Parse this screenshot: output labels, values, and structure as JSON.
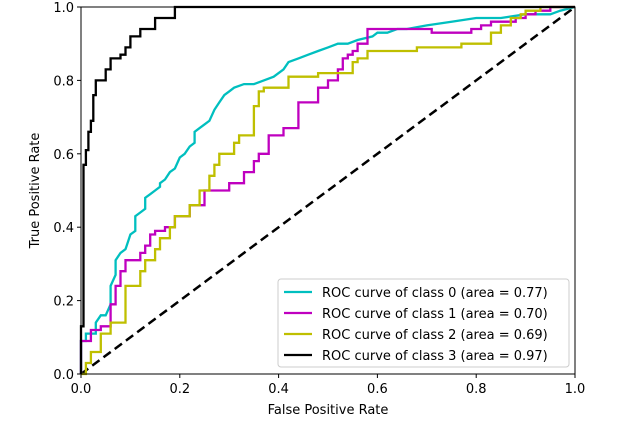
{
  "chart_data": {
    "type": "line",
    "title": "",
    "xlabel": "False Positive Rate",
    "ylabel": "True Positive Rate",
    "xlim": [
      0.0,
      1.0
    ],
    "ylim": [
      0.0,
      1.0
    ],
    "xticks": [
      "0.0",
      "0.2",
      "0.4",
      "0.6",
      "0.8",
      "1.0"
    ],
    "yticks": [
      "0.0",
      "0.2",
      "0.4",
      "0.6",
      "0.8",
      "1.0"
    ],
    "grid": false,
    "legend_position": "lower-right",
    "diagonal": {
      "color": "#000000",
      "style": "dashed",
      "x": [
        0,
        1
      ],
      "y": [
        0,
        1
      ]
    },
    "series": [
      {
        "name": "ROC curve of class 0 (area = 0.77)",
        "color": "#00bfbf",
        "x": [
          0.0,
          0.0,
          0.01,
          0.01,
          0.03,
          0.03,
          0.04,
          0.05,
          0.06,
          0.06,
          0.07,
          0.07,
          0.08,
          0.09,
          0.1,
          0.11,
          0.11,
          0.12,
          0.13,
          0.13,
          0.14,
          0.15,
          0.16,
          0.16,
          0.17,
          0.18,
          0.19,
          0.2,
          0.21,
          0.22,
          0.23,
          0.23,
          0.24,
          0.25,
          0.26,
          0.27,
          0.28,
          0.29,
          0.3,
          0.31,
          0.33,
          0.35,
          0.37,
          0.39,
          0.41,
          0.42,
          0.44,
          0.46,
          0.48,
          0.5,
          0.52,
          0.54,
          0.56,
          0.59,
          0.6,
          0.62,
          0.64,
          0.66,
          0.7,
          0.75,
          0.8,
          0.85,
          0.9,
          0.95,
          0.97,
          1.0
        ],
        "y": [
          0.0,
          0.09,
          0.09,
          0.11,
          0.11,
          0.14,
          0.16,
          0.16,
          0.19,
          0.24,
          0.27,
          0.31,
          0.33,
          0.34,
          0.38,
          0.39,
          0.43,
          0.44,
          0.45,
          0.48,
          0.49,
          0.5,
          0.51,
          0.52,
          0.53,
          0.55,
          0.56,
          0.59,
          0.6,
          0.62,
          0.63,
          0.66,
          0.67,
          0.68,
          0.69,
          0.72,
          0.74,
          0.76,
          0.77,
          0.78,
          0.79,
          0.79,
          0.8,
          0.81,
          0.83,
          0.85,
          0.86,
          0.87,
          0.88,
          0.89,
          0.9,
          0.9,
          0.91,
          0.92,
          0.93,
          0.93,
          0.94,
          0.94,
          0.95,
          0.96,
          0.97,
          0.97,
          0.98,
          0.98,
          0.99,
          1.0
        ]
      },
      {
        "name": "ROC curve of class 1 (area = 0.70)",
        "color": "#bf00bf",
        "x": [
          0.0,
          0.0,
          0.02,
          0.02,
          0.04,
          0.04,
          0.06,
          0.06,
          0.07,
          0.07,
          0.08,
          0.08,
          0.09,
          0.09,
          0.12,
          0.12,
          0.13,
          0.13,
          0.14,
          0.14,
          0.15,
          0.15,
          0.17,
          0.17,
          0.19,
          0.19,
          0.22,
          0.22,
          0.25,
          0.25,
          0.3,
          0.3,
          0.33,
          0.33,
          0.35,
          0.35,
          0.36,
          0.36,
          0.38,
          0.38,
          0.41,
          0.41,
          0.44,
          0.44,
          0.48,
          0.48,
          0.5,
          0.5,
          0.52,
          0.52,
          0.53,
          0.53,
          0.54,
          0.54,
          0.55,
          0.55,
          0.56,
          0.56,
          0.58,
          0.58,
          0.64,
          0.64,
          0.71,
          0.71,
          0.79,
          0.79,
          0.81,
          0.81,
          0.83,
          0.83,
          0.88,
          0.88,
          0.9,
          0.9,
          0.92,
          0.92,
          0.95,
          0.95,
          1.0
        ],
        "y": [
          0.0,
          0.09,
          0.09,
          0.12,
          0.12,
          0.13,
          0.13,
          0.19,
          0.19,
          0.24,
          0.24,
          0.28,
          0.28,
          0.31,
          0.31,
          0.33,
          0.33,
          0.35,
          0.35,
          0.38,
          0.38,
          0.39,
          0.39,
          0.4,
          0.4,
          0.43,
          0.43,
          0.46,
          0.46,
          0.5,
          0.5,
          0.52,
          0.52,
          0.55,
          0.55,
          0.58,
          0.58,
          0.6,
          0.6,
          0.65,
          0.65,
          0.67,
          0.67,
          0.74,
          0.74,
          0.78,
          0.78,
          0.8,
          0.8,
          0.83,
          0.83,
          0.86,
          0.86,
          0.87,
          0.87,
          0.88,
          0.88,
          0.9,
          0.9,
          0.94,
          0.94,
          0.94,
          0.94,
          0.93,
          0.93,
          0.94,
          0.94,
          0.95,
          0.95,
          0.96,
          0.96,
          0.97,
          0.97,
          0.98,
          0.98,
          0.99,
          0.99,
          1.0,
          1.0
        ]
      },
      {
        "name": "ROC curve of class 2 (area = 0.69)",
        "color": "#bfbf00",
        "x": [
          0.0,
          0.01,
          0.01,
          0.02,
          0.02,
          0.04,
          0.04,
          0.06,
          0.06,
          0.09,
          0.09,
          0.12,
          0.12,
          0.13,
          0.13,
          0.15,
          0.15,
          0.16,
          0.16,
          0.18,
          0.18,
          0.19,
          0.19,
          0.22,
          0.22,
          0.24,
          0.24,
          0.26,
          0.26,
          0.27,
          0.27,
          0.28,
          0.28,
          0.31,
          0.31,
          0.32,
          0.32,
          0.35,
          0.35,
          0.36,
          0.36,
          0.37,
          0.37,
          0.38,
          0.38,
          0.42,
          0.42,
          0.48,
          0.48,
          0.55,
          0.55,
          0.56,
          0.56,
          0.58,
          0.58,
          0.68,
          0.68,
          0.77,
          0.77,
          0.83,
          0.83,
          0.85,
          0.85,
          0.87,
          0.87,
          0.89,
          0.89,
          0.9,
          0.9,
          0.93,
          0.93,
          1.0
        ],
        "y": [
          0.0,
          0.0,
          0.03,
          0.03,
          0.06,
          0.06,
          0.11,
          0.11,
          0.14,
          0.14,
          0.24,
          0.24,
          0.28,
          0.28,
          0.31,
          0.31,
          0.34,
          0.34,
          0.37,
          0.37,
          0.4,
          0.4,
          0.43,
          0.43,
          0.46,
          0.46,
          0.5,
          0.5,
          0.54,
          0.54,
          0.57,
          0.57,
          0.6,
          0.6,
          0.63,
          0.63,
          0.65,
          0.65,
          0.73,
          0.73,
          0.77,
          0.77,
          0.78,
          0.78,
          0.78,
          0.78,
          0.81,
          0.81,
          0.82,
          0.82,
          0.85,
          0.85,
          0.86,
          0.86,
          0.88,
          0.88,
          0.89,
          0.89,
          0.9,
          0.9,
          0.93,
          0.93,
          0.95,
          0.95,
          0.97,
          0.97,
          0.98,
          0.98,
          0.99,
          0.99,
          1.0,
          1.0
        ]
      },
      {
        "name": "ROC curve of class 3 (area = 0.97)",
        "color": "#000000",
        "x": [
          0.0,
          0.0,
          0.005,
          0.005,
          0.01,
          0.01,
          0.015,
          0.015,
          0.02,
          0.02,
          0.025,
          0.025,
          0.03,
          0.03,
          0.05,
          0.05,
          0.06,
          0.06,
          0.08,
          0.08,
          0.09,
          0.09,
          0.1,
          0.1,
          0.12,
          0.12,
          0.15,
          0.15,
          0.19,
          0.19,
          1.0
        ],
        "y": [
          0.0,
          0.13,
          0.13,
          0.57,
          0.57,
          0.61,
          0.61,
          0.66,
          0.66,
          0.69,
          0.69,
          0.76,
          0.76,
          0.8,
          0.8,
          0.83,
          0.83,
          0.86,
          0.86,
          0.87,
          0.87,
          0.89,
          0.89,
          0.92,
          0.92,
          0.94,
          0.94,
          0.97,
          0.97,
          1.0,
          1.0
        ]
      }
    ]
  }
}
